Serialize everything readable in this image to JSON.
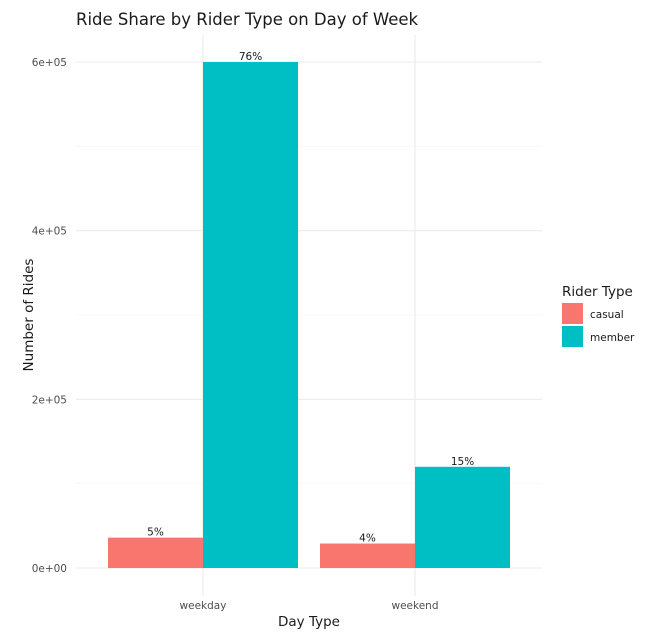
{
  "chart_data": {
    "type": "bar",
    "title": "Ride Share by Rider Type on Day of Week",
    "xlabel": "Day Type",
    "ylabel": "Number of Rides",
    "categories": [
      "weekday",
      "weekend"
    ],
    "series": [
      {
        "name": "casual",
        "values": [
          36000,
          29000
        ],
        "labels": [
          "5%",
          "4%"
        ],
        "color": "#F8766D"
      },
      {
        "name": "member",
        "values": [
          600000,
          120000
        ],
        "labels": [
          "76%",
          "15%"
        ],
        "color": "#00BFC4"
      }
    ],
    "ylim": [
      0,
      600000
    ],
    "yticks": [
      {
        "value": 0,
        "label": "0e+00"
      },
      {
        "value": 200000,
        "label": "2e+05"
      },
      {
        "value": 400000,
        "label": "4e+05"
      },
      {
        "value": 600000,
        "label": "6e+05"
      }
    ],
    "grid": true,
    "legend": {
      "title": "Rider Type",
      "position": "right"
    }
  }
}
